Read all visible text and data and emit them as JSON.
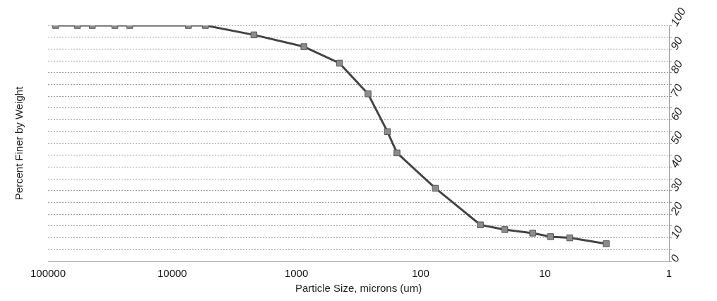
{
  "chart_data": {
    "type": "line",
    "xlabel": "Particle Size, microns (um)",
    "ylabel": "Percent Finer by Weight",
    "log": "x",
    "xlim": [
      100000,
      1
    ],
    "xticks": [
      100000,
      10000,
      1000,
      100,
      10,
      1
    ],
    "ylim": [
      0,
      100
    ],
    "yticks": [
      0,
      {
        "value": 5,
        "label": null
      },
      10,
      {
        "value": 15,
        "label": null
      },
      20,
      {
        "value": 25,
        "label": null
      },
      30,
      {
        "value": 35,
        "label": null
      },
      40,
      {
        "value": 45,
        "label": null
      },
      50,
      {
        "value": 55,
        "label": null
      },
      60,
      {
        "value": 65,
        "label": null
      },
      70,
      {
        "value": 75,
        "label": null
      },
      80,
      {
        "value": 85,
        "label": null
      },
      90,
      {
        "value": 95,
        "label": null
      },
      100
    ],
    "grid": "y",
    "marker": "square",
    "line_style": "solid",
    "legend": false,
    "series": [
      {
        "color": "#444444",
        "x": [
          87000,
          58000,
          44000,
          29000,
          22000,
          7400,
          5400,
          2200,
          870,
          450,
          265,
          185,
          155,
          76,
          33,
          21,
          12.5,
          9,
          6.3,
          3.2
        ],
        "values": [
          100,
          100,
          100,
          100,
          100,
          100,
          100,
          96,
          91,
          84,
          71,
          55,
          46,
          31,
          15.5,
          13.5,
          12,
          10.5,
          10,
          7.5
        ]
      }
    ]
  }
}
